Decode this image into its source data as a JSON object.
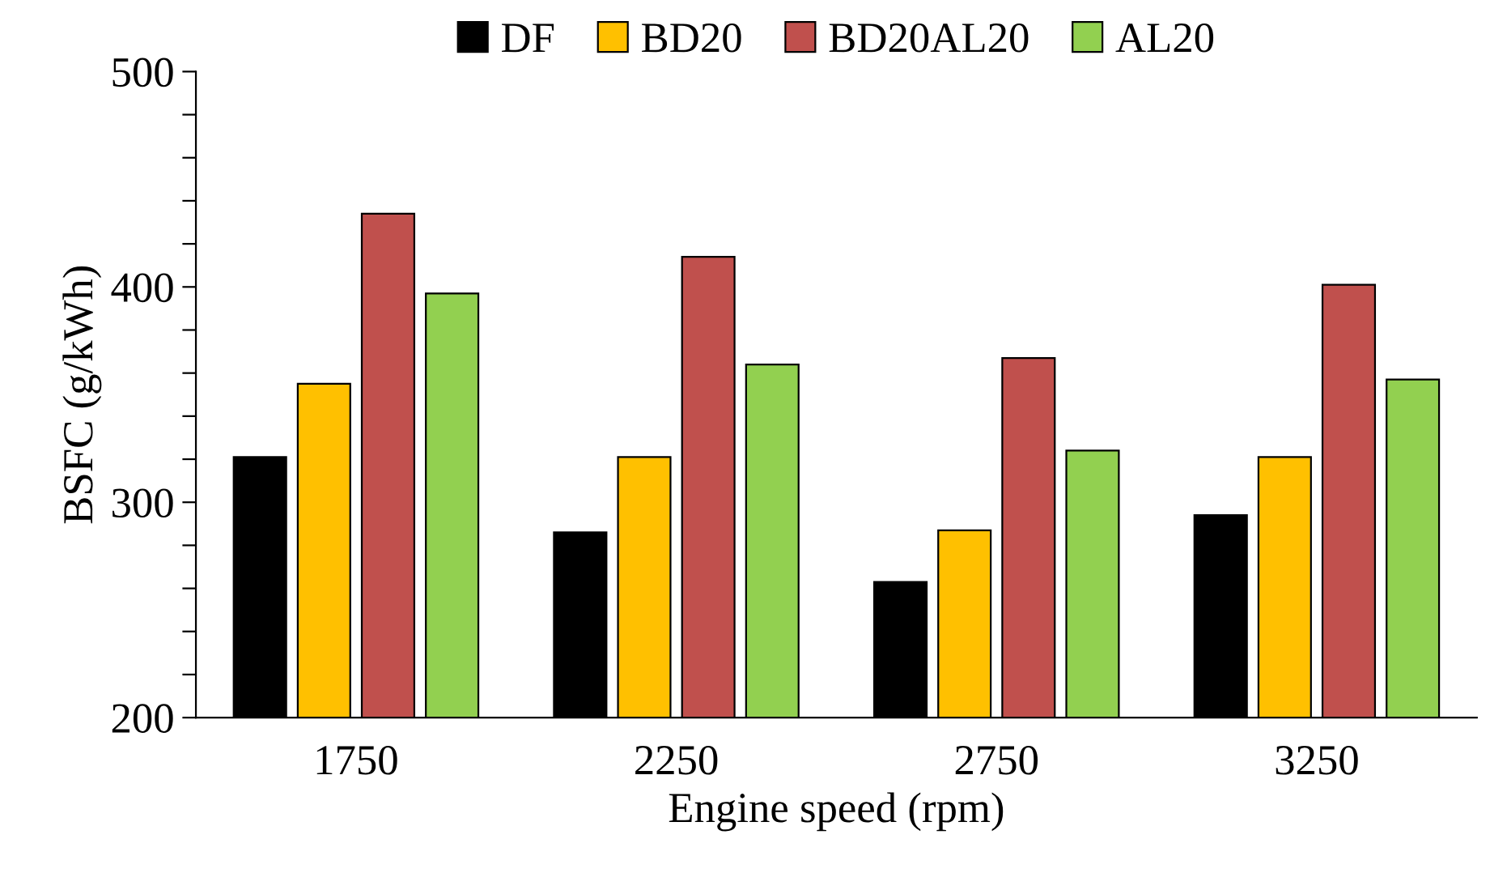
{
  "chart_data": {
    "type": "bar",
    "xlabel": "Engine speed (rpm)",
    "ylabel": "BSFC (g/kWh)",
    "categories": [
      "1750",
      "2250",
      "2750",
      "3250"
    ],
    "series": [
      {
        "name": "DF",
        "color": "#000000",
        "values": [
          321,
          286,
          263,
          294
        ]
      },
      {
        "name": "BD20",
        "color": "#ffc000",
        "values": [
          355,
          321,
          287,
          321
        ]
      },
      {
        "name": "BD20AL20",
        "color": "#c0504d",
        "values": [
          434,
          414,
          367,
          401
        ]
      },
      {
        "name": "AL20",
        "color": "#92d050",
        "values": [
          397,
          364,
          324,
          357
        ]
      }
    ],
    "ylim": [
      200,
      500
    ],
    "yticks": [
      200,
      {
        "value": 220,
        "label": null
      },
      {
        "value": 240,
        "label": null
      },
      {
        "value": 260,
        "label": null
      },
      {
        "value": 280,
        "label": null
      },
      300,
      {
        "value": 320,
        "label": null
      },
      {
        "value": 340,
        "label": null
      },
      {
        "value": 360,
        "label": null
      },
      {
        "value": 380,
        "label": null
      },
      400,
      {
        "value": 420,
        "label": null
      },
      {
        "value": 440,
        "label": null
      },
      {
        "value": 460,
        "label": null
      },
      {
        "value": 480,
        "label": null
      },
      500
    ],
    "grid": false,
    "legend": "top"
  }
}
